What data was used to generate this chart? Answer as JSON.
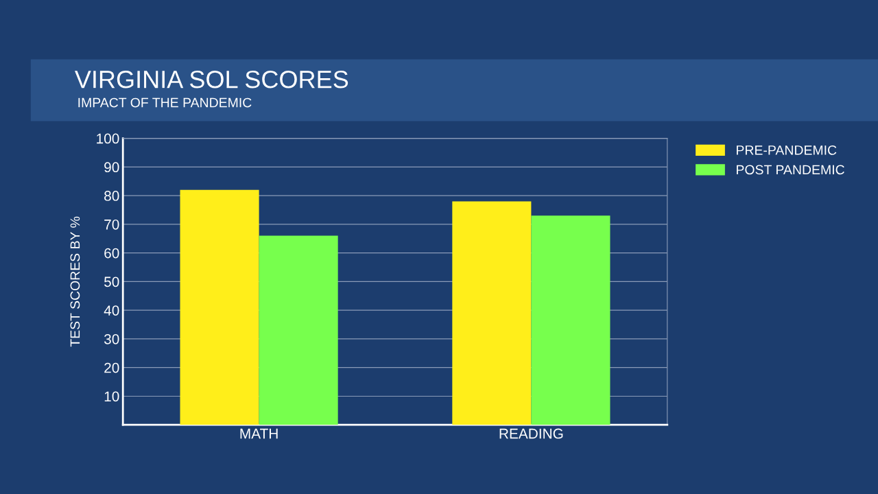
{
  "chart_data": {
    "type": "bar",
    "title": "VIRGINIA SOL SCORES",
    "subtitle": "IMPACT OF THE PANDEMIC",
    "ylabel": "TEST SCORES BY %",
    "categories": [
      "MATH",
      "READING"
    ],
    "series": [
      {
        "name": "PRE-PANDEMIC",
        "color": "#ffee1a",
        "values": [
          82,
          78
        ]
      },
      {
        "name": "POST PANDEMIC",
        "color": "#77ff4d",
        "values": [
          66,
          73
        ]
      }
    ],
    "ylim": [
      0,
      100
    ],
    "yticks": [
      10,
      20,
      30,
      40,
      50,
      60,
      70,
      80,
      90,
      100
    ],
    "grid": "y",
    "legend": "top right"
  }
}
